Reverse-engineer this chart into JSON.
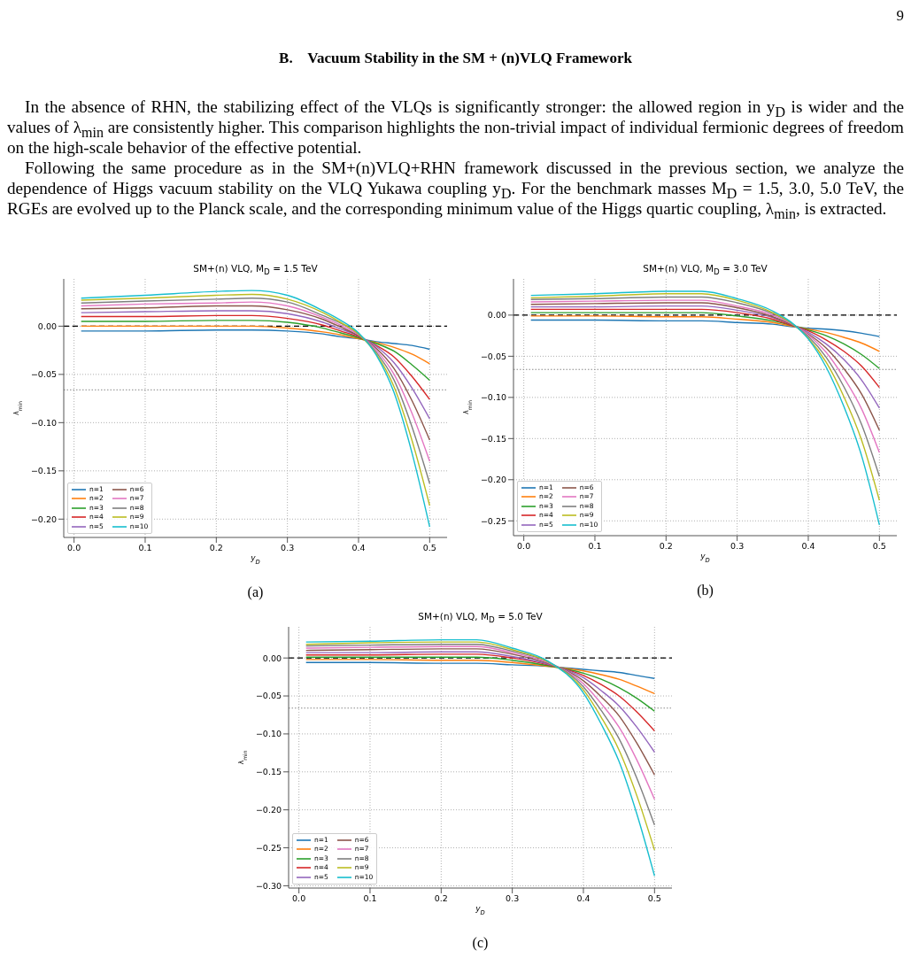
{
  "chart_data": [
    {
      "type": "other",
      "title": "B.    Vacuum Stability in the SM + (n)VLQ Framework",
      "annotations": [
        "9",
        "In the absence of RHN, the stabilizing effect of the VLQs is significantly stronger: the allowed region in y$_{D}$ is wider and the values of λ$_{min}$ are consistently higher. This comparison highlights the non-trivial impact of individual fermionic degrees of freedom on the high-scale behavior of the effective potential.",
        "Following the same procedure as in the SM+(n)VLQ+RHN framework discussed in the previous section, we analyze the dependence of Higgs vacuum stability on the VLQ Yukawa coupling y$_{D}$. For the benchmark masses M$_{D}$ = 1.5, 3.0, 5.0 TeV, the RGEs are evolved up to the Planck scale, and the corresponding minimum value of the Higgs quartic coupling, λ$_{min}$, is extracted."
      ]
    },
    {
      "type": "line",
      "title": "SM+(n) VLQ, M$_{D}$ = 1.5 TeV",
      "xlabel": "y$_{D}$",
      "ylabel": "λ$_{min}$",
      "annotations": [
        "(a)"
      ],
      "grid": true,
      "legend": "bottom left",
      "line_style": "solid",
      "xlim": [
        -0.0145,
        0.5245
      ],
      "xticks": [
        {
          "value": 0,
          "label": "0.0"
        },
        {
          "value": 0.1,
          "label": "0.1"
        },
        {
          "value": 0.2,
          "label": "0.2"
        },
        {
          "value": 0.3,
          "label": "0.3"
        },
        {
          "value": 0.4,
          "label": "0.4"
        },
        {
          "value": 0.5,
          "label": "0.5"
        }
      ],
      "ylim": [
        -0.219,
        0.049
      ],
      "yticks": [
        {
          "value": -0.2,
          "label": "−0.20"
        },
        {
          "value": -0.15,
          "label": "−0.15"
        },
        {
          "value": -0.1,
          "label": "−0.10"
        },
        {
          "value": -0.05,
          "label": "−0.05"
        },
        {
          "value": 0,
          "label": "0.00"
        }
      ],
      "ref_lines": [
        {
          "axis": "y",
          "value": 0,
          "color": "#000000",
          "line_style": "dashed"
        },
        {
          "axis": "y",
          "value": -0.066,
          "color": "#888888",
          "line_style": "dotted"
        }
      ],
      "x": [
        0.01,
        0.1,
        0.2,
        0.25,
        0.3,
        0.35,
        0.375,
        0.4,
        0.425,
        0.45,
        0.475,
        0.5
      ],
      "series": [
        {
          "name": "n=1",
          "color": "#1f77b4",
          "values": [
            -0.005,
            -0.005,
            -0.004,
            -0.004,
            -0.005,
            -0.008,
            -0.011,
            -0.013,
            -0.016,
            -0.018,
            -0.02,
            -0.024
          ]
        },
        {
          "name": "n=2",
          "color": "#ff7f0e",
          "values": [
            0,
            0,
            0,
            0,
            -0.002,
            -0.006,
            -0.009,
            -0.013,
            -0.017,
            -0.022,
            -0.029,
            -0.039
          ]
        },
        {
          "name": "n=3",
          "color": "#2ca02c",
          "values": [
            0.005,
            0.005,
            0.006,
            0.006,
            0.004,
            -0.002,
            -0.007,
            -0.012,
            -0.018,
            -0.026,
            -0.04,
            -0.056
          ]
        },
        {
          "name": "n=4",
          "color": "#d62728",
          "values": [
            0.01,
            0.01,
            0.011,
            0.011,
            0.008,
            0.001,
            -0.005,
            -0.011,
            -0.02,
            -0.032,
            -0.052,
            -0.076
          ]
        },
        {
          "name": "n=5",
          "color": "#9467bd",
          "values": [
            0.014,
            0.015,
            0.016,
            0.016,
            0.013,
            0.004,
            -0.003,
            -0.01,
            -0.021,
            -0.038,
            -0.064,
            -0.096
          ]
        },
        {
          "name": "n=6",
          "color": "#8c564b",
          "values": [
            0.018,
            0.019,
            0.021,
            0.021,
            0.017,
            0.007,
            -0.001,
            -0.01,
            -0.023,
            -0.044,
            -0.077,
            -0.118
          ]
        },
        {
          "name": "n=7",
          "color": "#e377c2",
          "values": [
            0.021,
            0.023,
            0.024,
            0.025,
            0.021,
            0.009,
            0.001,
            -0.009,
            -0.025,
            -0.05,
            -0.09,
            -0.14
          ]
        },
        {
          "name": "n=8",
          "color": "#7f7f7f",
          "values": [
            0.024,
            0.026,
            0.028,
            0.029,
            0.025,
            0.011,
            0.003,
            -0.008,
            -0.027,
            -0.056,
            -0.104,
            -0.163
          ]
        },
        {
          "name": "n=9",
          "color": "#bcbd22",
          "values": [
            0.027,
            0.029,
            0.032,
            0.033,
            0.028,
            0.014,
            0.004,
            -0.008,
            -0.029,
            -0.063,
            -0.118,
            -0.186
          ]
        },
        {
          "name": "n=10",
          "color": "#17becf",
          "values": [
            0.029,
            0.032,
            0.036,
            0.037,
            0.032,
            0.016,
            0.006,
            -0.007,
            -0.03,
            -0.069,
            -0.131,
            -0.208
          ]
        }
      ]
    },
    {
      "type": "line",
      "title": "SM+(n) VLQ, M$_{D}$ = 3.0 TeV",
      "xlabel": "y$_{D}$",
      "ylabel": "λ$_{min}$",
      "annotations": [
        "(b)"
      ],
      "grid": true,
      "legend": "bottom left",
      "line_style": "solid",
      "xlim": [
        -0.0145,
        0.5245
      ],
      "xticks": [
        {
          "value": 0,
          "label": "0.0"
        },
        {
          "value": 0.1,
          "label": "0.1"
        },
        {
          "value": 0.2,
          "label": "0.2"
        },
        {
          "value": 0.3,
          "label": "0.3"
        },
        {
          "value": 0.4,
          "label": "0.4"
        },
        {
          "value": 0.5,
          "label": "0.5"
        }
      ],
      "ylim": [
        -0.268,
        0.044
      ],
      "yticks": [
        {
          "value": -0.25,
          "label": "−0.25"
        },
        {
          "value": -0.2,
          "label": "−0.20"
        },
        {
          "value": -0.15,
          "label": "−0.15"
        },
        {
          "value": -0.1,
          "label": "−0.10"
        },
        {
          "value": -0.05,
          "label": "−0.05"
        },
        {
          "value": 0,
          "label": "0.00"
        }
      ],
      "ref_lines": [
        {
          "axis": "y",
          "value": 0,
          "color": "#000000",
          "line_style": "dashed"
        },
        {
          "axis": "y",
          "value": -0.066,
          "color": "#888888",
          "line_style": "dotted"
        }
      ],
      "x": [
        0.01,
        0.1,
        0.2,
        0.25,
        0.3,
        0.35,
        0.375,
        0.4,
        0.425,
        0.45,
        0.475,
        0.5
      ],
      "series": [
        {
          "name": "n=1",
          "color": "#1f77b4",
          "values": [
            -0.006,
            -0.006,
            -0.007,
            -0.007,
            -0.009,
            -0.011,
            -0.014,
            -0.016,
            -0.017,
            -0.019,
            -0.022,
            -0.026
          ]
        },
        {
          "name": "n=2",
          "color": "#ff7f0e",
          "values": [
            -0.001,
            -0.001,
            -0.002,
            -0.002,
            -0.005,
            -0.009,
            -0.013,
            -0.017,
            -0.021,
            -0.027,
            -0.034,
            -0.044
          ]
        },
        {
          "name": "n=3",
          "color": "#2ca02c",
          "values": [
            0.003,
            0.003,
            0.003,
            0.003,
            -0.001,
            -0.007,
            -0.012,
            -0.018,
            -0.025,
            -0.035,
            -0.048,
            -0.065
          ]
        },
        {
          "name": "n=4",
          "color": "#d62728",
          "values": [
            0.007,
            0.007,
            0.007,
            0.007,
            0.003,
            -0.005,
            -0.012,
            -0.019,
            -0.03,
            -0.044,
            -0.062,
            -0.088
          ]
        },
        {
          "name": "n=5",
          "color": "#9467bd",
          "values": [
            0.01,
            0.01,
            0.011,
            0.011,
            0.006,
            -0.003,
            -0.011,
            -0.021,
            -0.035,
            -0.054,
            -0.079,
            -0.113
          ]
        },
        {
          "name": "n=6",
          "color": "#8c564b",
          "values": [
            0.013,
            0.014,
            0.015,
            0.015,
            0.009,
            -0.002,
            -0.011,
            -0.023,
            -0.04,
            -0.065,
            -0.096,
            -0.14
          ]
        },
        {
          "name": "n=7",
          "color": "#e377c2",
          "values": [
            0.016,
            0.017,
            0.018,
            0.018,
            0.011,
            0,
            -0.01,
            -0.024,
            -0.045,
            -0.076,
            -0.114,
            -0.167
          ]
        },
        {
          "name": "n=8",
          "color": "#7f7f7f",
          "values": [
            0.019,
            0.02,
            0.022,
            0.022,
            0.015,
            0.002,
            -0.009,
            -0.026,
            -0.051,
            -0.087,
            -0.133,
            -0.196
          ]
        },
        {
          "name": "n=9",
          "color": "#bcbd22",
          "values": [
            0.021,
            0.023,
            0.026,
            0.026,
            0.018,
            0.003,
            -0.009,
            -0.028,
            -0.057,
            -0.099,
            -0.152,
            -0.225
          ]
        },
        {
          "name": "n=10",
          "color": "#17becf",
          "values": [
            0.024,
            0.026,
            0.029,
            0.029,
            0.02,
            0.005,
            -0.008,
            -0.029,
            -0.063,
            -0.111,
            -0.171,
            -0.255
          ]
        }
      ]
    },
    {
      "type": "line",
      "title": "SM+(n) VLQ, M$_{D}$ = 5.0 TeV",
      "xlabel": "y$_{D}$",
      "ylabel": "λ$_{min}$",
      "annotations": [
        "(c)"
      ],
      "grid": true,
      "legend": "bottom left",
      "line_style": "solid",
      "xlim": [
        -0.0145,
        0.5245
      ],
      "xticks": [
        {
          "value": 0,
          "label": "0.0"
        },
        {
          "value": 0.1,
          "label": "0.1"
        },
        {
          "value": 0.2,
          "label": "0.2"
        },
        {
          "value": 0.3,
          "label": "0.3"
        },
        {
          "value": 0.4,
          "label": "0.4"
        },
        {
          "value": 0.5,
          "label": "0.5"
        }
      ],
      "ylim": [
        -0.303,
        0.041
      ],
      "yticks": [
        {
          "value": -0.3,
          "label": "−0.30"
        },
        {
          "value": -0.25,
          "label": "−0.25"
        },
        {
          "value": -0.2,
          "label": "−0.20"
        },
        {
          "value": -0.15,
          "label": "−0.15"
        },
        {
          "value": -0.1,
          "label": "−0.10"
        },
        {
          "value": -0.05,
          "label": "−0.05"
        },
        {
          "value": 0,
          "label": "0.00"
        }
      ],
      "ref_lines": [
        {
          "axis": "y",
          "value": 0,
          "color": "#000000",
          "line_style": "dashed"
        },
        {
          "axis": "y",
          "value": -0.066,
          "color": "#888888",
          "line_style": "dotted"
        }
      ],
      "x": [
        0.01,
        0.1,
        0.2,
        0.25,
        0.3,
        0.35,
        0.4,
        0.425,
        0.45,
        0.475,
        0.5
      ],
      "series": [
        {
          "name": "n=1",
          "color": "#1f77b4",
          "values": [
            -0.006,
            -0.006,
            -0.007,
            -0.007,
            -0.009,
            -0.011,
            -0.015,
            -0.017,
            -0.019,
            -0.023,
            -0.027
          ]
        },
        {
          "name": "n=2",
          "color": "#ff7f0e",
          "values": [
            -0.002,
            -0.002,
            -0.003,
            -0.003,
            -0.006,
            -0.011,
            -0.017,
            -0.022,
            -0.028,
            -0.037,
            -0.047
          ]
        },
        {
          "name": "n=3",
          "color": "#2ca02c",
          "values": [
            0.001,
            0.001,
            0.001,
            0.001,
            -0.003,
            -0.01,
            -0.02,
            -0.028,
            -0.039,
            -0.053,
            -0.07
          ]
        },
        {
          "name": "n=4",
          "color": "#d62728",
          "values": [
            0.004,
            0.004,
            0.005,
            0.005,
            0,
            -0.009,
            -0.023,
            -0.035,
            -0.05,
            -0.071,
            -0.096
          ]
        },
        {
          "name": "n=5",
          "color": "#9467bd",
          "values": [
            0.007,
            0.007,
            0.008,
            0.008,
            0.002,
            -0.008,
            -0.026,
            -0.043,
            -0.063,
            -0.091,
            -0.124
          ]
        },
        {
          "name": "n=6",
          "color": "#8c564b",
          "values": [
            0.01,
            0.011,
            0.012,
            0.012,
            0.005,
            -0.007,
            -0.03,
            -0.051,
            -0.076,
            -0.112,
            -0.154
          ]
        },
        {
          "name": "n=7",
          "color": "#e377c2",
          "values": [
            0.013,
            0.014,
            0.015,
            0.015,
            0.007,
            -0.006,
            -0.034,
            -0.06,
            -0.091,
            -0.134,
            -0.186
          ]
        },
        {
          "name": "n=8",
          "color": "#7f7f7f",
          "values": [
            0.016,
            0.017,
            0.018,
            0.018,
            0.009,
            -0.005,
            -0.038,
            -0.069,
            -0.106,
            -0.158,
            -0.22
          ]
        },
        {
          "name": "n=9",
          "color": "#bcbd22",
          "values": [
            0.018,
            0.02,
            0.021,
            0.021,
            0.011,
            -0.005,
            -0.042,
            -0.078,
            -0.121,
            -0.181,
            -0.253
          ]
        },
        {
          "name": "n=10",
          "color": "#17becf",
          "values": [
            0.021,
            0.022,
            0.024,
            0.024,
            0.013,
            -0.004,
            -0.046,
            -0.087,
            -0.136,
            -0.205,
            -0.287
          ]
        }
      ]
    }
  ]
}
